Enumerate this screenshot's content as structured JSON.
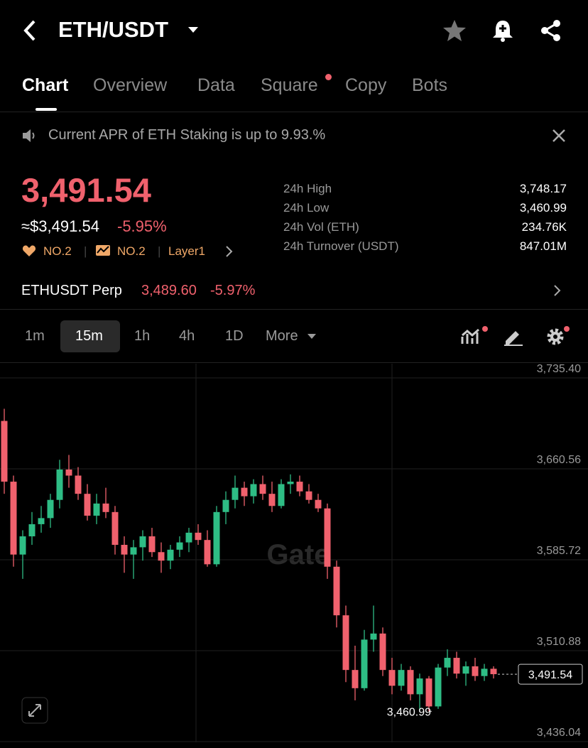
{
  "header": {
    "pair": "ETH/USDT"
  },
  "tabs": [
    "Chart",
    "Overview",
    "Data",
    "Square",
    "Copy",
    "Bots"
  ],
  "notice": "Current APR of ETH Staking is up to 9.93.%",
  "price": {
    "last": "3,491.54",
    "usd": "≈$3,491.54",
    "change": "-5.95%"
  },
  "badges": [
    "NO.2",
    "NO.2",
    "Layer1"
  ],
  "stats": [
    {
      "label": "24h High",
      "value": "3,748.17"
    },
    {
      "label": "24h Low",
      "value": "3,460.99"
    },
    {
      "label": "24h Vol (ETH)",
      "value": "234.76K"
    },
    {
      "label": "24h Turnover (USDT)",
      "value": "847.01M"
    }
  ],
  "perp": {
    "name": "ETHUSDT Perp",
    "price": "3,489.60",
    "change": "-5.97%"
  },
  "timeframes": [
    "1m",
    "15m",
    "1h",
    "4h",
    "1D",
    "More"
  ],
  "chart_data": {
    "type": "candlestick",
    "watermark": "Gate",
    "up_color": "#2ebd85",
    "down_color": "#f0616d",
    "ylim": [
      3435.45,
      3747.1
    ],
    "yticks": [
      {
        "value": 3436.04,
        "label": "3,436.04"
      },
      {
        "value": 3510.88,
        "label": "3,510.88"
      },
      {
        "value": 3585.72,
        "label": "3,585.72"
      },
      {
        "value": 3660.56,
        "label": "3,660.56"
      },
      {
        "value": 3735.4,
        "label": "3,735.40"
      }
    ],
    "last_price": {
      "value": 3491.54,
      "label": "3,491.54"
    },
    "low_marker": {
      "value": 3460.99,
      "label": "3,460.99"
    },
    "open": [
      3700,
      3650,
      3590,
      3605,
      3615,
      3620,
      3635,
      3660,
      3655,
      3640,
      3622,
      3632,
      3625,
      3598,
      3590,
      3596,
      3605,
      3592,
      3585,
      3594,
      3600,
      3608,
      3602,
      3582,
      3625,
      3635,
      3645,
      3638,
      3648,
      3640,
      3630,
      3648,
      3650,
      3642,
      3635,
      3628,
      3580,
      3540,
      3495,
      3480,
      3520,
      3525,
      3495,
      3482,
      3495,
      3475,
      3488,
      3465,
      3497,
      3505,
      3492,
      3498,
      3490,
      3496
    ],
    "high": [
      3710,
      3655,
      3610,
      3625,
      3630,
      3640,
      3668,
      3672,
      3662,
      3648,
      3640,
      3645,
      3630,
      3605,
      3602,
      3610,
      3612,
      3600,
      3598,
      3605,
      3612,
      3615,
      3610,
      3630,
      3642,
      3655,
      3650,
      3652,
      3655,
      3650,
      3652,
      3656,
      3655,
      3648,
      3640,
      3632,
      3585,
      3548,
      3515,
      3528,
      3548,
      3530,
      3505,
      3500,
      3498,
      3492,
      3490,
      3500,
      3512,
      3510,
      3502,
      3505,
      3500,
      3498
    ],
    "low": [
      3640,
      3580,
      3570,
      3598,
      3608,
      3612,
      3628,
      3645,
      3635,
      3618,
      3615,
      3620,
      3590,
      3575,
      3570,
      3585,
      3588,
      3575,
      3578,
      3588,
      3592,
      3598,
      3580,
      3580,
      3615,
      3628,
      3630,
      3632,
      3635,
      3625,
      3628,
      3640,
      3638,
      3632,
      3625,
      3570,
      3530,
      3485,
      3470,
      3478,
      3510,
      3490,
      3475,
      3478,
      3470,
      3462,
      3460.99,
      3463,
      3490,
      3488,
      3482,
      3486,
      3486,
      3488
    ],
    "close": [
      3650,
      3590,
      3605,
      3615,
      3620,
      3635,
      3660,
      3655,
      3640,
      3622,
      3632,
      3625,
      3598,
      3590,
      3596,
      3605,
      3592,
      3585,
      3594,
      3600,
      3608,
      3602,
      3582,
      3625,
      3635,
      3645,
      3638,
      3648,
      3640,
      3630,
      3648,
      3650,
      3642,
      3635,
      3628,
      3580,
      3540,
      3495,
      3480,
      3520,
      3525,
      3495,
      3482,
      3495,
      3475,
      3488,
      3465,
      3497,
      3505,
      3492,
      3498,
      3490,
      3496,
      3491.54
    ]
  }
}
